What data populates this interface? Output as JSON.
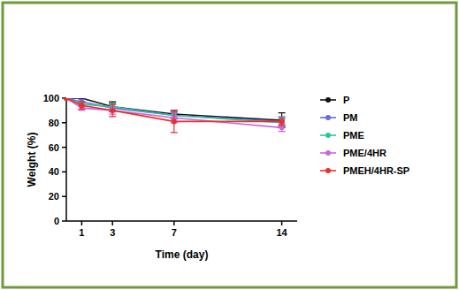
{
  "chart_data": {
    "type": "line",
    "x_label": "Time (day)",
    "y_label": "Weight (%)",
    "x": [
      0,
      1,
      3,
      7,
      14
    ],
    "xlim": [
      0,
      15
    ],
    "xticks": [
      1,
      3,
      7,
      14
    ],
    "ylim": [
      0,
      100
    ],
    "yticks": [
      0,
      20,
      40,
      60,
      80,
      100
    ],
    "legend": "right",
    "marker": "circle",
    "series": [
      {
        "name": "P",
        "color": "#111111",
        "values": [
          100,
          100,
          93,
          87,
          82
        ],
        "errors": [
          0,
          3,
          4,
          3,
          6
        ]
      },
      {
        "name": "PM",
        "color": "#6b6be0",
        "values": [
          100,
          97,
          92,
          86,
          81
        ],
        "errors": [
          0,
          2,
          3,
          3,
          4
        ]
      },
      {
        "name": "PME",
        "color": "#2fc49b",
        "values": [
          100,
          95,
          93,
          86,
          80
        ],
        "errors": [
          0,
          2,
          3,
          2,
          3
        ]
      },
      {
        "name": "PME/4HR",
        "color": "#cc66dd",
        "values": [
          100,
          92,
          90,
          84,
          76
        ],
        "errors": [
          0,
          2,
          3,
          4,
          3
        ]
      },
      {
        "name": "PMEH/4HR-SP",
        "color": "#e8302c",
        "values": [
          100,
          94,
          90,
          81,
          81
        ],
        "errors": [
          0,
          3,
          5,
          9,
          3
        ]
      }
    ]
  }
}
